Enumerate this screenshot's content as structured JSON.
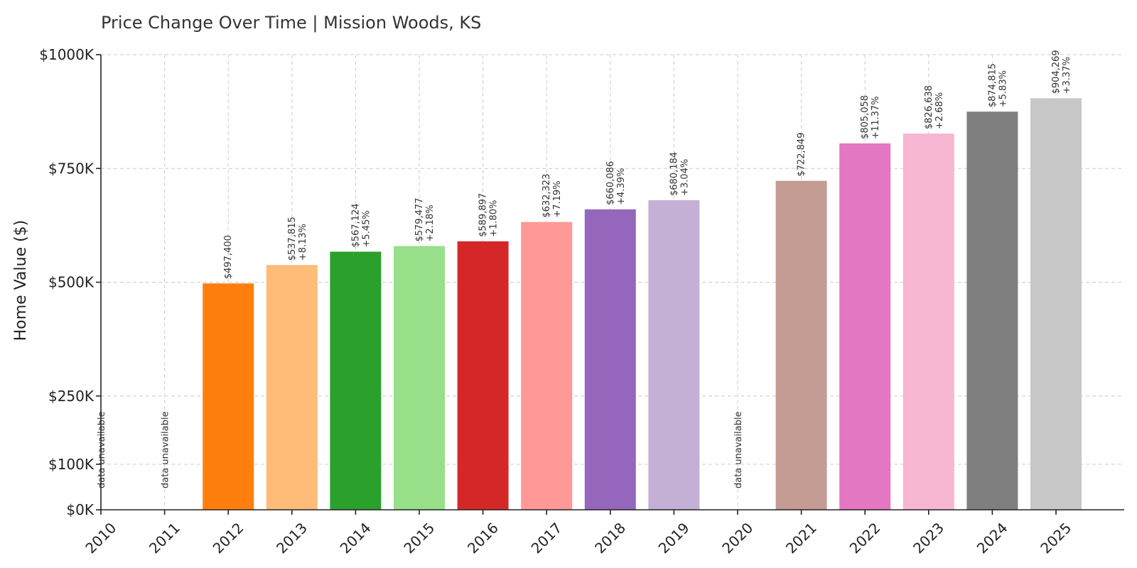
{
  "chart_data": {
    "type": "bar",
    "title": "Price Change Over Time | Mission Woods, KS",
    "xlabel": "",
    "ylabel": "Home Value ($)",
    "ylim": [
      0,
      1000000
    ],
    "yticks": [
      {
        "value": 0,
        "label": "$0K"
      },
      {
        "value": 100000,
        "label": "$100K"
      },
      {
        "value": 250000,
        "label": "$250K"
      },
      {
        "value": 500000,
        "label": "$500K"
      },
      {
        "value": 750000,
        "label": "$750K"
      },
      {
        "value": 1000000,
        "label": "$1000K"
      }
    ],
    "categories": [
      "2010",
      "2011",
      "2012",
      "2013",
      "2014",
      "2015",
      "2016",
      "2017",
      "2018",
      "2019",
      "2020",
      "2021",
      "2022",
      "2023",
      "2024",
      "2025"
    ],
    "values": [
      null,
      null,
      497400,
      537815,
      567124,
      579477,
      589897,
      632323,
      660086,
      680184,
      null,
      722849,
      805058,
      826638,
      874815,
      904269
    ],
    "value_labels": [
      null,
      null,
      "$497,400",
      "$537,815",
      "$567,124",
      "$579,477",
      "$589,897",
      "$632,323",
      "$660,086",
      "$680,184",
      null,
      "$722,849",
      "$805,058",
      "$826,638",
      "$874,815",
      "$904,269"
    ],
    "change_labels": [
      null,
      null,
      null,
      "+8.13%",
      "+5.45%",
      "+2.18%",
      "+1.80%",
      "+7.19%",
      "+4.39%",
      "+3.04%",
      null,
      null,
      "+11.37%",
      "+2.68%",
      "+5.83%",
      "+3.37%"
    ],
    "missing_label": "data unavailable",
    "colors": [
      "#1f77b4",
      "#aec7e8",
      "#ff7f0e",
      "#ffbb78",
      "#2ca02c",
      "#98df8a",
      "#d62728",
      "#ff9896",
      "#9467bd",
      "#c5b0d5",
      "#8c564b",
      "#c49c94",
      "#e377c2",
      "#f7b6d2",
      "#7f7f7f",
      "#c7c7c7"
    ],
    "grid": true
  }
}
